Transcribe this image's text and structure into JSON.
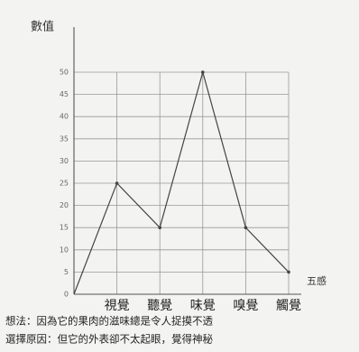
{
  "chart_data": {
    "type": "line",
    "ylabel": "數值",
    "xlabel": "五感",
    "categories": [
      null,
      "視覺",
      "聽覺",
      "味覺",
      "嗅覺",
      "觸覺"
    ],
    "values": [
      0,
      25,
      15,
      50,
      15,
      5
    ],
    "color": "#444444",
    "ylim": [
      0,
      50
    ],
    "yticks": [
      0,
      5,
      10,
      15,
      20,
      25,
      30,
      35,
      40,
      45,
      50
    ],
    "grid": true,
    "notes": [
      "想法：因為它的果肉的滋味總是令人捉摸不透",
      "選擇原因：但它的外表卻不太起眼，覺得神秘"
    ]
  }
}
